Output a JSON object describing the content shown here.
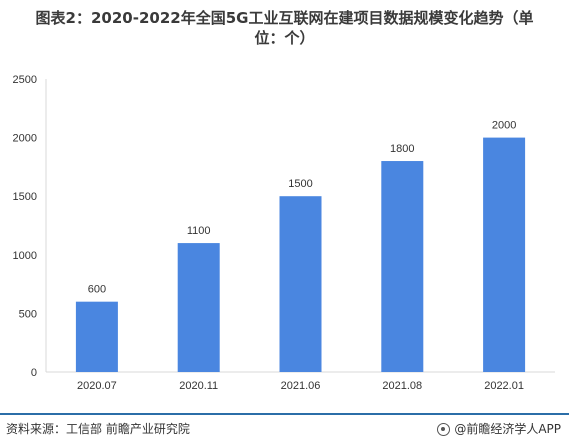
{
  "title": {
    "line1": "图表2：2020-2022年全国5G工业互联网在建项目数据规模变化趋势（单",
    "line2": "位：个）"
  },
  "footer": {
    "source": "资料来源：工信部 前瞻产业研究院",
    "app": "@前瞻经济学人APP"
  },
  "colors": {
    "bar": "#4a86e0",
    "axis": "#d9d9d9",
    "footer_rule": "#2b6ea8"
  },
  "chart_data": {
    "type": "bar",
    "categories": [
      "2020.07",
      "2020.11",
      "2021.06",
      "2021.08",
      "2022.01"
    ],
    "values": [
      600,
      1100,
      1500,
      1800,
      2000
    ],
    "ylim": [
      0,
      2500
    ],
    "yticks": [
      0,
      500,
      1000,
      1500,
      2000,
      2500
    ],
    "grid": false,
    "data_labels": true
  }
}
